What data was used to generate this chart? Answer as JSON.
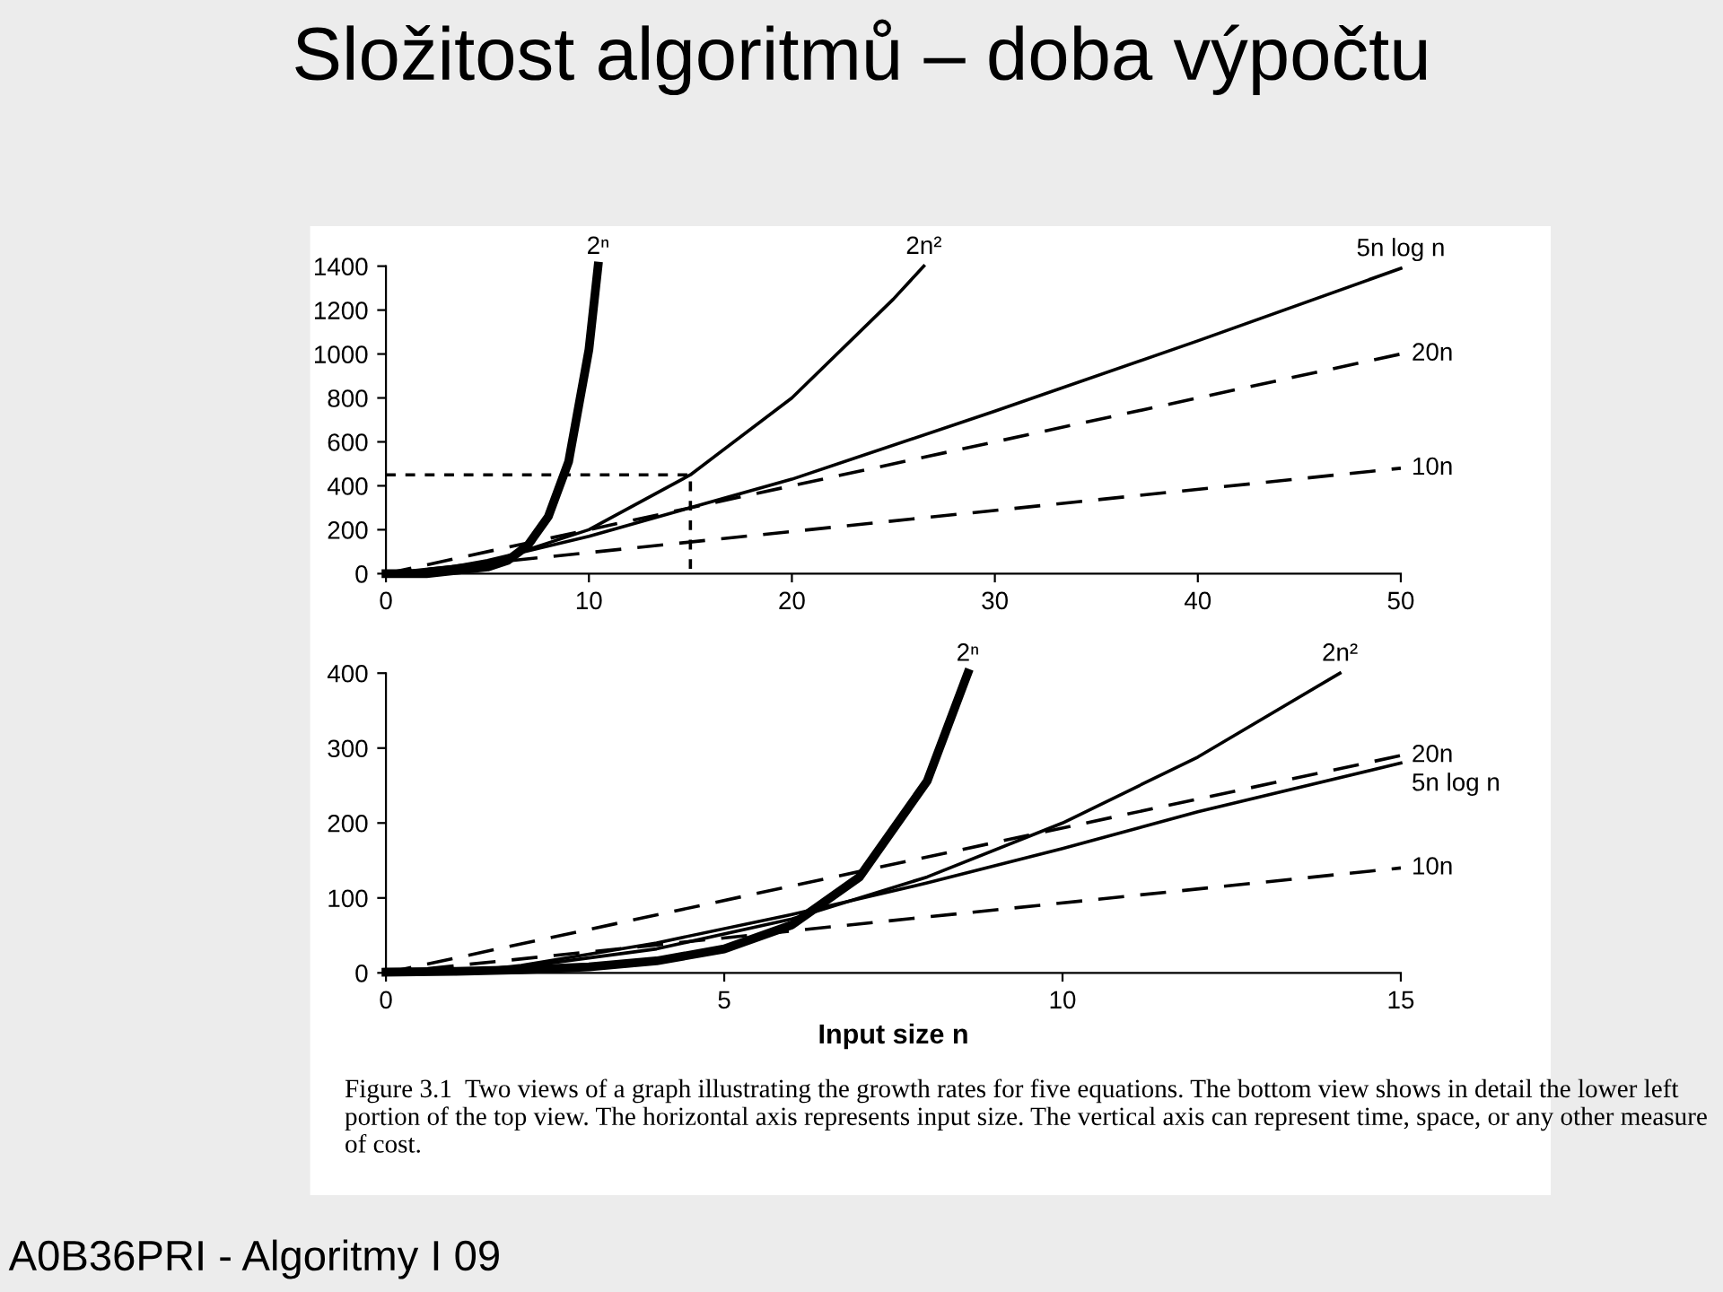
{
  "chart_data": [
    {
      "type": "line",
      "title": "Složitost algoritmů – doba výpočtu",
      "xlim": [
        0,
        50
      ],
      "ylim": [
        0,
        1400
      ],
      "xticks": [
        0,
        10,
        20,
        30,
        40,
        50
      ],
      "yticks": [
        0,
        200,
        400,
        600,
        800,
        1000,
        1200,
        1400
      ],
      "grid": false,
      "legend": false,
      "marker": "none",
      "series": [
        {
          "name": "2ⁿ",
          "color": "#000000",
          "line_style": "solid",
          "x": [
            0,
            1,
            2,
            3,
            4,
            5,
            6,
            7,
            8,
            9,
            10,
            10.45
          ],
          "values": [
            0,
            0,
            0,
            10,
            20,
            30,
            60,
            130,
            260,
            510,
            1020,
            1400
          ]
        },
        {
          "name": "2n²",
          "color": "#000000",
          "line_style": "solid",
          "x": [
            0,
            5,
            10,
            15,
            20,
            25,
            26.5
          ],
          "values": [
            0,
            50,
            200,
            450,
            800,
            1250,
            1400
          ]
        },
        {
          "name": "5n log n",
          "color": "#000000",
          "line_style": "solid",
          "x": [
            1,
            2,
            5,
            10,
            20,
            30,
            40,
            50
          ],
          "values": [
            0,
            10,
            60,
            170,
            430,
            740,
            1060,
            1390
          ]
        },
        {
          "name": "20n",
          "color": "#000000",
          "line_style": "dashed",
          "x": [
            0,
            50
          ],
          "values": [
            0,
            1000
          ]
        },
        {
          "name": "10n",
          "color": "#000000",
          "line_style": "dashed",
          "x": [
            0,
            50
          ],
          "values": [
            0,
            480
          ]
        },
        {
          "color": "#000000",
          "line_style": "dotted",
          "x": [
            0,
            15,
            15
          ],
          "values": [
            450,
            450,
            0
          ]
        }
      ]
    },
    {
      "type": "line",
      "xlabel": "Input size n",
      "xlim": [
        0,
        15
      ],
      "ylim": [
        0,
        400
      ],
      "xticks": [
        0,
        5,
        10,
        15
      ],
      "yticks": [
        0,
        100,
        200,
        300,
        400
      ],
      "grid": false,
      "legend": false,
      "marker": "none",
      "annotations": [
        "Figure 3.1  Two views of a graph illustrating the growth rates for five equations. The bottom view shows in detail the lower left portion of the top view. The horizontal axis represents input size. The vertical axis can represent time, space, or any other measure of cost.",
        "A0B36PRI - Algoritmy I 09"
      ],
      "series": [
        {
          "name": "2ⁿ",
          "color": "#000000",
          "line_style": "solid",
          "x": [
            0,
            1,
            2,
            3,
            4,
            5,
            6,
            7,
            8,
            8.6
          ],
          "values": [
            1,
            2,
            4,
            8,
            16,
            32,
            64,
            128,
            256,
            400
          ]
        },
        {
          "name": "2n²",
          "color": "#000000",
          "line_style": "solid",
          "x": [
            0,
            2,
            4,
            6,
            8,
            10,
            12,
            14.1
          ],
          "values": [
            0,
            8,
            32,
            72,
            128,
            200,
            288,
            400
          ]
        },
        {
          "name": "20n",
          "color": "#000000",
          "line_style": "dashed",
          "x": [
            0,
            15
          ],
          "values": [
            0,
            290
          ]
        },
        {
          "name": "5n log n",
          "color": "#000000",
          "line_style": "solid",
          "x": [
            1,
            2,
            4,
            6,
            8,
            10,
            12,
            15
          ],
          "values": [
            0,
            10,
            40,
            78,
            120,
            166,
            215,
            280
          ]
        },
        {
          "name": "10n",
          "color": "#000000",
          "line_style": "dashed",
          "x": [
            0,
            15
          ],
          "values": [
            0,
            140
          ]
        }
      ]
    }
  ]
}
